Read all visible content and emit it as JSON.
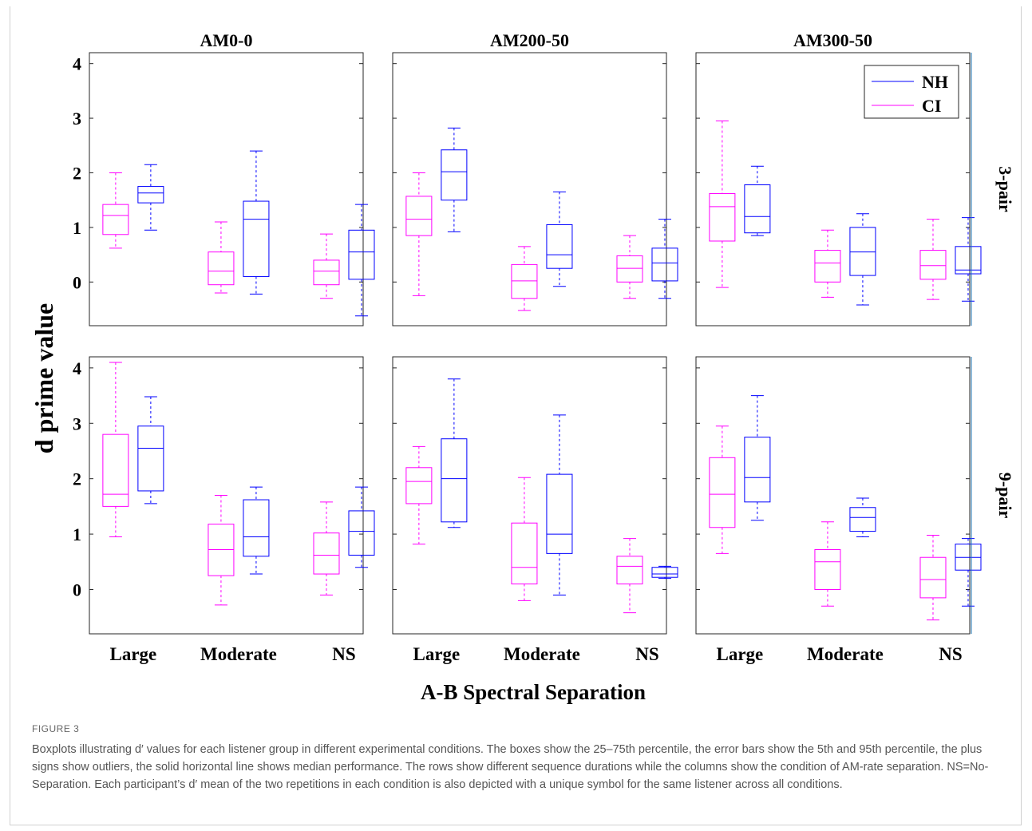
{
  "figure": {
    "ylabel": "d prime value",
    "xlabel": "A-B Spectral Separation",
    "columns": [
      "AM0-0",
      "AM200-50",
      "AM300-50"
    ],
    "rows": [
      "3-pair",
      "9-pair"
    ],
    "categories": [
      "Large",
      "Moderate",
      "NS"
    ],
    "yticks": [
      "0",
      "1",
      "2",
      "3",
      "4"
    ],
    "legend": [
      {
        "label": "NH",
        "color": "#0000ff"
      },
      {
        "label": "CI",
        "color": "#ff00ff"
      }
    ],
    "caption_label": "FIGURE 3",
    "caption_text": "Boxplots illustrating d′ values for each listener group in different experimental conditions. The boxes show the 25–75th percentile, the error bars show the 5th and 95th percentile, the plus signs show outliers, the solid horizontal line shows median performance. The rows show different sequence durations while the columns show the condition of AM-rate separation. NS=No-Separation. Each participant’s d′ mean of the two repetitions in each condition is also depicted with a unique symbol for the same listener across all conditions."
  },
  "chart_data": {
    "type": "boxplot",
    "ylim": [
      -0.8,
      4.2
    ],
    "colors": {
      "CI": "#ff00ff",
      "NH": "#0000ff"
    },
    "panels": [
      {
        "column": "AM0-0",
        "row": "3-pair",
        "boxes": [
          {
            "category": "Large",
            "group": "CI",
            "wlo": 0.62,
            "q1": 0.87,
            "med": 1.22,
            "q3": 1.42,
            "whi": 2.0
          },
          {
            "category": "Large",
            "group": "NH",
            "wlo": 0.95,
            "q1": 1.45,
            "med": 1.63,
            "q3": 1.75,
            "whi": 2.15
          },
          {
            "category": "Moderate",
            "group": "CI",
            "wlo": -0.2,
            "q1": -0.05,
            "med": 0.2,
            "q3": 0.55,
            "whi": 1.1
          },
          {
            "category": "Moderate",
            "group": "NH",
            "wlo": -0.22,
            "q1": 0.1,
            "med": 1.15,
            "q3": 1.48,
            "whi": 2.4
          },
          {
            "category": "NS",
            "group": "CI",
            "wlo": -0.3,
            "q1": -0.05,
            "med": 0.2,
            "q3": 0.4,
            "whi": 0.88
          },
          {
            "category": "NS",
            "group": "NH",
            "wlo": -0.62,
            "q1": 0.05,
            "med": 0.55,
            "q3": 0.95,
            "whi": 1.42
          }
        ]
      },
      {
        "column": "AM200-50",
        "row": "3-pair",
        "boxes": [
          {
            "category": "Large",
            "group": "CI",
            "wlo": -0.25,
            "q1": 0.85,
            "med": 1.15,
            "q3": 1.57,
            "whi": 2.0
          },
          {
            "category": "Large",
            "group": "NH",
            "wlo": 0.92,
            "q1": 1.5,
            "med": 2.02,
            "q3": 2.42,
            "whi": 2.82
          },
          {
            "category": "Moderate",
            "group": "CI",
            "wlo": -0.52,
            "q1": -0.3,
            "med": 0.02,
            "q3": 0.32,
            "whi": 0.65
          },
          {
            "category": "Moderate",
            "group": "NH",
            "wlo": -0.08,
            "q1": 0.25,
            "med": 0.5,
            "q3": 1.05,
            "whi": 1.65
          },
          {
            "category": "NS",
            "group": "CI",
            "wlo": -0.3,
            "q1": 0.0,
            "med": 0.25,
            "q3": 0.48,
            "whi": 0.85
          },
          {
            "category": "NS",
            "group": "NH",
            "wlo": -0.3,
            "q1": 0.02,
            "med": 0.35,
            "q3": 0.62,
            "whi": 1.15
          }
        ]
      },
      {
        "column": "AM300-50",
        "row": "3-pair",
        "boxes": [
          {
            "category": "Large",
            "group": "CI",
            "wlo": -0.1,
            "q1": 0.75,
            "med": 1.38,
            "q3": 1.62,
            "whi": 2.95
          },
          {
            "category": "Large",
            "group": "NH",
            "wlo": 0.85,
            "q1": 0.9,
            "med": 1.2,
            "q3": 1.78,
            "whi": 2.12
          },
          {
            "category": "Moderate",
            "group": "CI",
            "wlo": -0.28,
            "q1": 0.0,
            "med": 0.35,
            "q3": 0.58,
            "whi": 0.95
          },
          {
            "category": "Moderate",
            "group": "NH",
            "wlo": -0.42,
            "q1": 0.12,
            "med": 0.55,
            "q3": 1.0,
            "whi": 1.25
          },
          {
            "category": "NS",
            "group": "CI",
            "wlo": -0.32,
            "q1": 0.05,
            "med": 0.3,
            "q3": 0.58,
            "whi": 1.15
          },
          {
            "category": "NS",
            "group": "NH",
            "wlo": -0.35,
            "q1": 0.15,
            "med": 0.22,
            "q3": 0.65,
            "whi": 1.18
          }
        ]
      },
      {
        "column": "AM0-0",
        "row": "9-pair",
        "boxes": [
          {
            "category": "Large",
            "group": "CI",
            "wlo": 0.95,
            "q1": 1.5,
            "med": 1.72,
            "q3": 2.8,
            "whi": 4.1
          },
          {
            "category": "Large",
            "group": "NH",
            "wlo": 1.55,
            "q1": 1.78,
            "med": 2.55,
            "q3": 2.95,
            "whi": 3.48
          },
          {
            "category": "Moderate",
            "group": "CI",
            "wlo": -0.28,
            "q1": 0.25,
            "med": 0.72,
            "q3": 1.18,
            "whi": 1.7
          },
          {
            "category": "Moderate",
            "group": "NH",
            "wlo": 0.28,
            "q1": 0.6,
            "med": 0.95,
            "q3": 1.62,
            "whi": 1.85
          },
          {
            "category": "NS",
            "group": "CI",
            "wlo": -0.1,
            "q1": 0.28,
            "med": 0.62,
            "q3": 1.02,
            "whi": 1.58
          },
          {
            "category": "NS",
            "group": "NH",
            "wlo": 0.4,
            "q1": 0.62,
            "med": 1.05,
            "q3": 1.42,
            "whi": 1.85
          }
        ]
      },
      {
        "column": "AM200-50",
        "row": "9-pair",
        "boxes": [
          {
            "category": "Large",
            "group": "CI",
            "wlo": 0.82,
            "q1": 1.55,
            "med": 1.95,
            "q3": 2.2,
            "whi": 2.58
          },
          {
            "category": "Large",
            "group": "NH",
            "wlo": 1.12,
            "q1": 1.22,
            "med": 2.0,
            "q3": 2.72,
            "whi": 3.8
          },
          {
            "category": "Moderate",
            "group": "CI",
            "wlo": -0.2,
            "q1": 0.1,
            "med": 0.4,
            "q3": 1.2,
            "whi": 2.02
          },
          {
            "category": "Moderate",
            "group": "NH",
            "wlo": -0.1,
            "q1": 0.65,
            "med": 1.0,
            "q3": 2.08,
            "whi": 3.15
          },
          {
            "category": "NS",
            "group": "CI",
            "wlo": -0.42,
            "q1": 0.1,
            "med": 0.42,
            "q3": 0.6,
            "whi": 0.92
          },
          {
            "category": "NS",
            "group": "NH",
            "wlo": 0.2,
            "q1": 0.22,
            "med": 0.28,
            "q3": 0.4,
            "whi": 0.42
          }
        ]
      },
      {
        "column": "AM300-50",
        "row": "9-pair",
        "boxes": [
          {
            "category": "Large",
            "group": "CI",
            "wlo": 0.65,
            "q1": 1.12,
            "med": 1.72,
            "q3": 2.38,
            "whi": 2.95
          },
          {
            "category": "Large",
            "group": "NH",
            "wlo": 1.25,
            "q1": 1.58,
            "med": 2.02,
            "q3": 2.75,
            "whi": 3.5
          },
          {
            "category": "Moderate",
            "group": "CI",
            "wlo": -0.3,
            "q1": 0.0,
            "med": 0.5,
            "q3": 0.72,
            "whi": 1.22
          },
          {
            "category": "Moderate",
            "group": "NH",
            "wlo": 0.95,
            "q1": 1.05,
            "med": 1.3,
            "q3": 1.48,
            "whi": 1.65
          },
          {
            "category": "NS",
            "group": "CI",
            "wlo": -0.55,
            "q1": -0.15,
            "med": 0.18,
            "q3": 0.58,
            "whi": 0.98
          },
          {
            "category": "NS",
            "group": "NH",
            "wlo": -0.3,
            "q1": 0.35,
            "med": 0.58,
            "q3": 0.82,
            "whi": 0.92
          }
        ]
      }
    ]
  }
}
